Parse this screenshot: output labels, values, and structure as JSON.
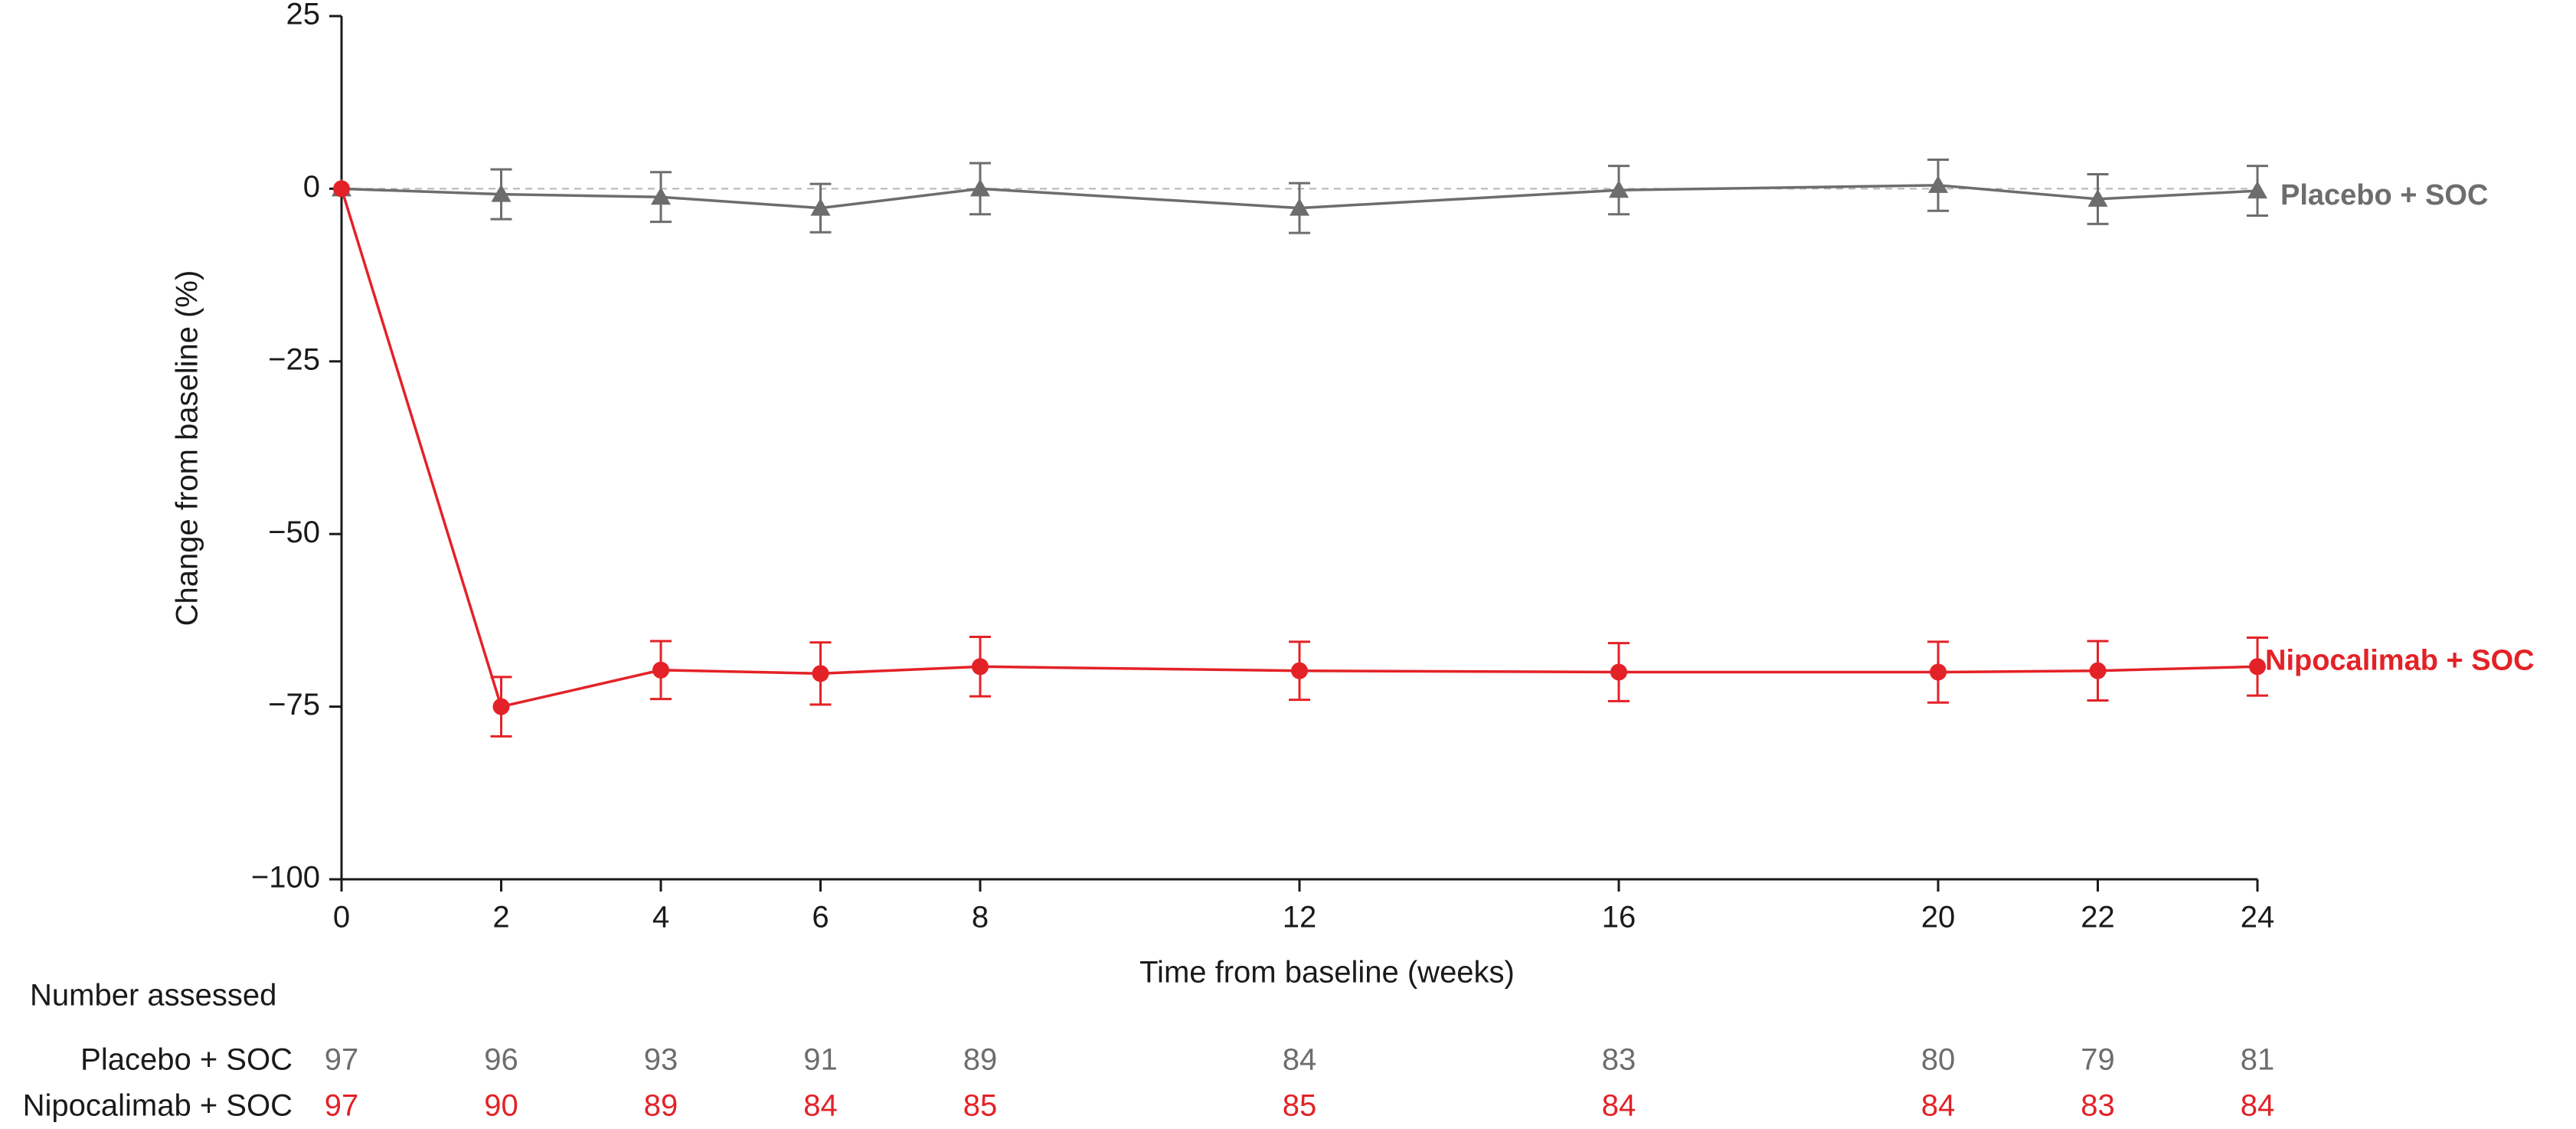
{
  "chart_data": {
    "type": "line",
    "x_label": "Time from baseline (weeks)",
    "y_label": "Change from baseline (%)",
    "x": [
      0,
      2,
      4,
      6,
      8,
      12,
      16,
      20,
      22,
      24
    ],
    "xlim": [
      0,
      24
    ],
    "xticks": [
      0,
      2,
      4,
      6,
      8,
      12,
      16,
      20,
      22,
      24
    ],
    "ylim": [
      -100,
      25
    ],
    "yticks": [
      25,
      0,
      {
        "value": -25,
        "label": "−25"
      },
      {
        "value": -50,
        "label": "−50"
      },
      {
        "value": -75,
        "label": "−75"
      },
      {
        "value": -100,
        "label": "−100"
      }
    ],
    "series": [
      {
        "name": "Placebo + SOC",
        "color": "#6d6d6d",
        "marker": "triangle",
        "values": [
          0,
          -0.8,
          -1.2,
          -2.8,
          0,
          -2.8,
          -0.2,
          0.5,
          -1.5,
          -0.3
        ],
        "errors": [
          0,
          3.6,
          3.6,
          3.5,
          3.7,
          3.6,
          3.5,
          3.7,
          3.6,
          3.6
        ]
      },
      {
        "name": "Nipocalimab + SOC",
        "color": "#e32227",
        "marker": "circle",
        "values": [
          0,
          -75,
          -69.7,
          -70.2,
          -69.2,
          -69.8,
          -70,
          -70,
          -69.8,
          -69.2
        ],
        "errors": [
          0,
          4.3,
          4.2,
          4.5,
          4.3,
          4.2,
          4.2,
          4.4,
          4.3,
          4.2
        ]
      }
    ],
    "table": {
      "title": "Number assessed",
      "rows": [
        {
          "label": "Placebo + SOC",
          "values": [
            97,
            96,
            93,
            91,
            89,
            84,
            83,
            80,
            79,
            81
          ]
        },
        {
          "label": "Nipocalimab + SOC",
          "values": [
            97,
            90,
            89,
            84,
            85,
            85,
            84,
            84,
            83,
            84
          ]
        }
      ]
    }
  }
}
